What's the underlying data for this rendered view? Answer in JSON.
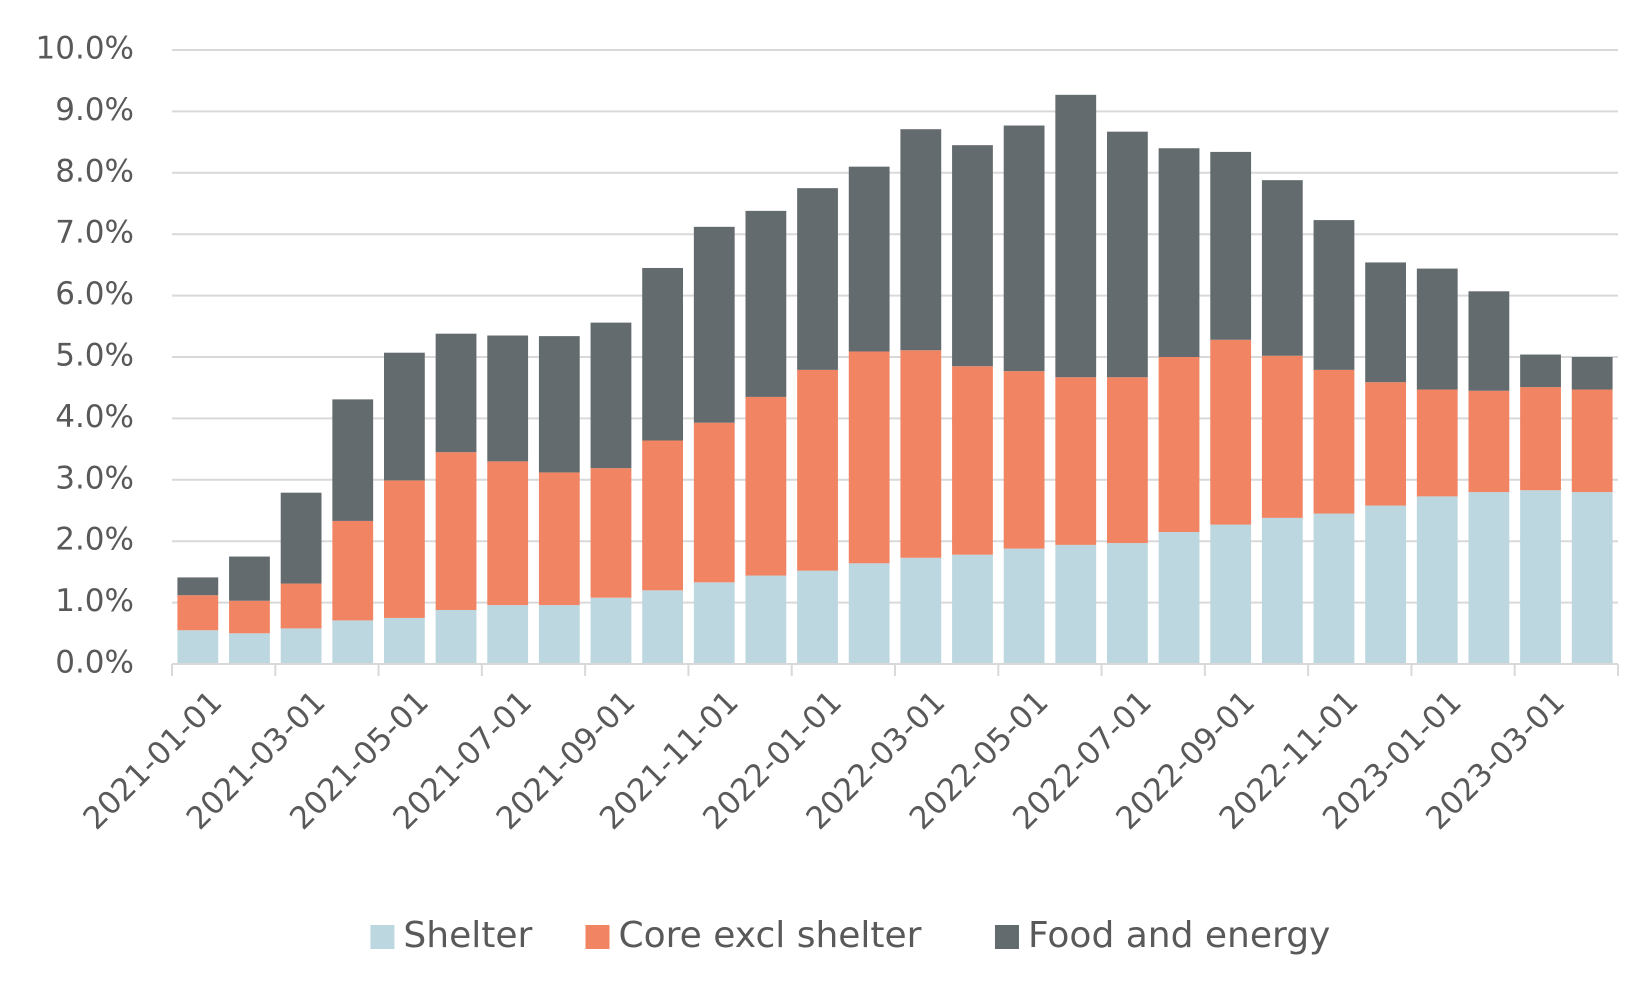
{
  "chart_data": {
    "type": "bar",
    "stacked": true,
    "title": "",
    "xlabel": "",
    "ylabel": "",
    "ylim": [
      0,
      10
    ],
    "y_tick_values": [
      0,
      1,
      2,
      3,
      4,
      5,
      6,
      7,
      8,
      9,
      10
    ],
    "y_tick_labels": [
      "0.0%",
      "1.0%",
      "2.0%",
      "3.0%",
      "4.0%",
      "5.0%",
      "6.0%",
      "7.0%",
      "8.0%",
      "9.0%",
      "10.0%"
    ],
    "y_grid": true,
    "categories": [
      "2021-01-01",
      "2021-02-01",
      "2021-03-01",
      "2021-04-01",
      "2021-05-01",
      "2021-06-01",
      "2021-07-01",
      "2021-08-01",
      "2021-09-01",
      "2021-10-01",
      "2021-11-01",
      "2021-12-01",
      "2022-01-01",
      "2022-02-01",
      "2022-03-01",
      "2022-04-01",
      "2022-05-01",
      "2022-06-01",
      "2022-07-01",
      "2022-08-01",
      "2022-09-01",
      "2022-10-01",
      "2022-11-01",
      "2022-12-01",
      "2023-01-01",
      "2023-02-01",
      "2023-03-01",
      "2023-04-01"
    ],
    "x_tick_labels": [
      "2021-01-01",
      "",
      "2021-03-01",
      "",
      "2021-05-01",
      "",
      "2021-07-01",
      "",
      "2021-09-01",
      "",
      "2021-11-01",
      "",
      "2022-01-01",
      "",
      "2022-03-01",
      "",
      "2022-05-01",
      "",
      "2022-07-01",
      "",
      "2022-09-01",
      "",
      "2022-11-01",
      "",
      "2023-01-01",
      "",
      "2023-03-01",
      ""
    ],
    "legend_position": "bottom",
    "series": [
      {
        "name": "Shelter",
        "color": "#bcd7e0",
        "values": [
          0.55,
          0.5,
          0.58,
          0.71,
          0.75,
          0.88,
          0.96,
          0.96,
          1.08,
          1.2,
          1.33,
          1.44,
          1.52,
          1.64,
          1.73,
          1.78,
          1.88,
          1.94,
          1.97,
          2.15,
          2.27,
          2.38,
          2.45,
          2.58,
          2.73,
          2.8,
          2.83,
          2.8
        ]
      },
      {
        "name": "Core excl shelter",
        "color": "#f08463",
        "values": [
          0.57,
          0.53,
          0.73,
          1.62,
          2.24,
          2.57,
          2.34,
          2.16,
          2.11,
          2.44,
          2.6,
          2.91,
          3.27,
          3.45,
          3.38,
          3.07,
          2.89,
          2.73,
          2.7,
          2.85,
          3.01,
          2.64,
          2.34,
          2.01,
          1.74,
          1.65,
          1.68,
          1.67
        ]
      },
      {
        "name": "Food and energy",
        "color": "#646b6e",
        "values": [
          0.29,
          0.72,
          1.48,
          1.98,
          2.08,
          1.93,
          2.05,
          2.22,
          2.37,
          2.81,
          3.19,
          3.03,
          2.96,
          3.01,
          3.6,
          3.6,
          4.0,
          4.6,
          4.0,
          3.4,
          3.06,
          2.86,
          2.44,
          1.95,
          1.97,
          1.62,
          0.53,
          0.53
        ]
      }
    ]
  }
}
